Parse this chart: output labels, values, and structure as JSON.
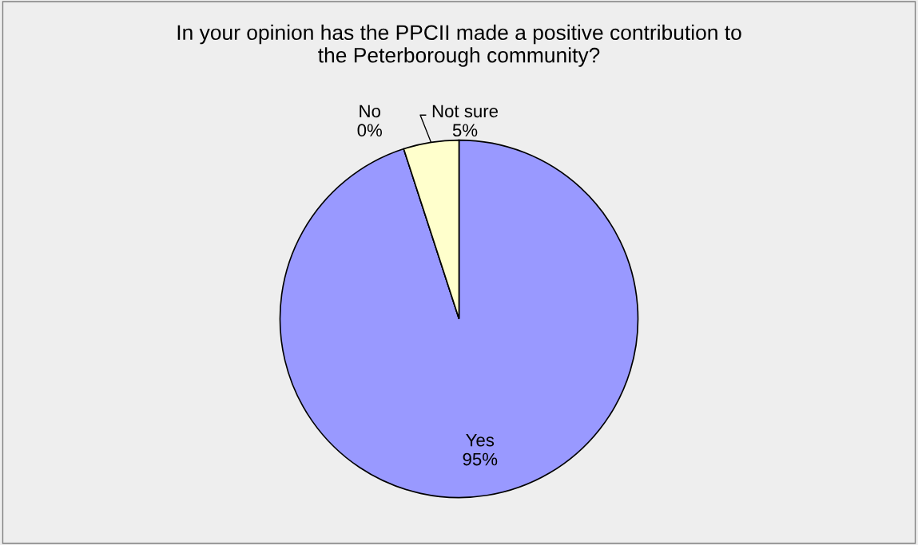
{
  "chart_data": {
    "type": "pie",
    "title": "In your opinion has the PPCII made a positive contribution to\nthe Peterborough community?",
    "categories": [
      "Yes",
      "No",
      "Not sure"
    ],
    "values": [
      95,
      0,
      5
    ],
    "value_labels": [
      "95%",
      "0%",
      "5%"
    ],
    "colors": [
      "#9999ff",
      "#993366",
      "#ffffcc"
    ]
  }
}
